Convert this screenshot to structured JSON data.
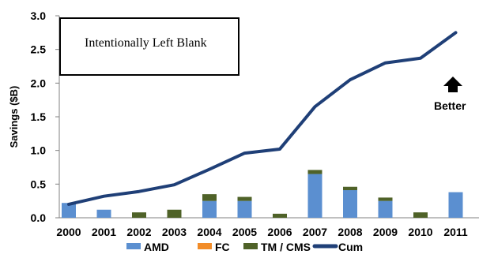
{
  "chart_data": {
    "type": "bar",
    "categories": [
      "2000",
      "2001",
      "2002",
      "2003",
      "2004",
      "2005",
      "2006",
      "2007",
      "2008",
      "2009",
      "2010",
      "2011"
    ],
    "ylabel": "Savings ($B)",
    "ylim": [
      0,
      3.0
    ],
    "yticks": [
      "0.0",
      "0.5",
      "1.0",
      "1.5",
      "2.0",
      "2.5",
      "3.0"
    ],
    "grid": false,
    "legend_position": "bottom",
    "series": [
      {
        "name": "AMD",
        "kind": "bar",
        "color": "#5b8fd0",
        "values": [
          0.22,
          0.12,
          0.0,
          0.0,
          0.25,
          0.25,
          0.0,
          0.65,
          0.41,
          0.25,
          0.0,
          0.38
        ]
      },
      {
        "name": "FC",
        "kind": "bar",
        "color": "#f28c28",
        "values": [
          0,
          0,
          0,
          0,
          0,
          0,
          0,
          0,
          0,
          0,
          0,
          0
        ]
      },
      {
        "name": "TM / CMS",
        "kind": "bar",
        "color": "#4f6228",
        "values": [
          0.0,
          0.0,
          0.08,
          0.12,
          0.1,
          0.06,
          0.06,
          0.06,
          0.05,
          0.05,
          0.08,
          0.0
        ]
      },
      {
        "name": "Cum",
        "kind": "line",
        "color": "#1f3f77",
        "values": [
          0.2,
          0.32,
          0.39,
          0.49,
          0.72,
          0.96,
          1.02,
          1.65,
          2.05,
          2.3,
          2.37,
          2.75
        ]
      }
    ],
    "annotations": {
      "box_text": "Intentionally Left Blank",
      "arrow_label": "Better"
    }
  }
}
